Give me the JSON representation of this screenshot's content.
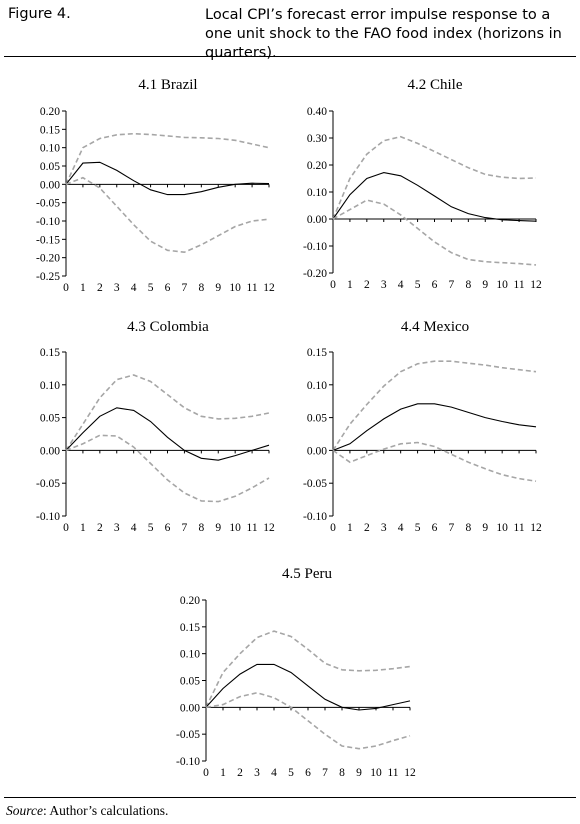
{
  "figure": {
    "number": "Figure 4.",
    "title": "Local CPI’s forecast error impulse response to a one unit shock to the FAO food index (horizons in quarters).",
    "source_label": "Source",
    "source_text": ": Author’s calculations."
  },
  "colors": {
    "median": "#000000",
    "bands": "#a6a6a6",
    "axis": "#000000"
  },
  "chart_data": [
    {
      "type": "line",
      "title": "4.1 Brazil",
      "x": [
        0,
        1,
        2,
        3,
        4,
        5,
        6,
        7,
        8,
        9,
        10,
        11,
        12
      ],
      "ylim": [
        -0.25,
        0.2
      ],
      "yticks": [
        "0.20",
        "0.15",
        "0.10",
        "0.05",
        "0.00",
        "-0.05",
        "-0.10",
        "-0.15",
        "-0.20",
        "-0.25"
      ],
      "series": [
        {
          "role": "upper",
          "style": "dashed",
          "values": [
            0.0,
            0.1,
            0.125,
            0.135,
            0.138,
            0.136,
            0.132,
            0.128,
            0.127,
            0.125,
            0.12,
            0.11,
            0.1
          ]
        },
        {
          "role": "median",
          "style": "solid",
          "values": [
            0.0,
            0.058,
            0.06,
            0.038,
            0.01,
            -0.015,
            -0.028,
            -0.028,
            -0.02,
            -0.008,
            0.0,
            0.003,
            0.002
          ]
        },
        {
          "role": "lower",
          "style": "dashed",
          "values": [
            0.0,
            0.018,
            -0.01,
            -0.06,
            -0.11,
            -0.155,
            -0.18,
            -0.185,
            -0.165,
            -0.14,
            -0.115,
            -0.1,
            -0.095
          ]
        }
      ]
    },
    {
      "type": "line",
      "title": "4.2 Chile",
      "x": [
        0,
        1,
        2,
        3,
        4,
        5,
        6,
        7,
        8,
        9,
        10,
        11,
        12
      ],
      "ylim": [
        -0.2,
        0.4
      ],
      "yticks": [
        "0.40",
        "0.30",
        "0.20",
        "0.10",
        "0.00",
        "-0.10",
        "-0.20"
      ],
      "series": [
        {
          "role": "upper",
          "style": "dashed",
          "values": [
            0.0,
            0.15,
            0.24,
            0.29,
            0.305,
            0.28,
            0.25,
            0.22,
            0.19,
            0.165,
            0.155,
            0.15,
            0.152
          ]
        },
        {
          "role": "median",
          "style": "solid",
          "values": [
            0.0,
            0.09,
            0.15,
            0.172,
            0.16,
            0.125,
            0.085,
            0.045,
            0.02,
            0.005,
            -0.003,
            -0.006,
            -0.008
          ]
        },
        {
          "role": "lower",
          "style": "dashed",
          "values": [
            0.0,
            0.035,
            0.07,
            0.055,
            0.015,
            -0.035,
            -0.085,
            -0.125,
            -0.15,
            -0.158,
            -0.162,
            -0.165,
            -0.17
          ]
        }
      ]
    },
    {
      "type": "line",
      "title": "4.3 Colombia",
      "x": [
        0,
        1,
        2,
        3,
        4,
        5,
        6,
        7,
        8,
        9,
        10,
        11,
        12
      ],
      "ylim": [
        -0.1,
        0.15
      ],
      "yticks": [
        "0.15",
        "0.10",
        "0.05",
        "0.00",
        "-0.05",
        "-0.10"
      ],
      "series": [
        {
          "role": "upper",
          "style": "dashed",
          "values": [
            0.0,
            0.04,
            0.08,
            0.108,
            0.115,
            0.105,
            0.085,
            0.065,
            0.052,
            0.048,
            0.049,
            0.052,
            0.057
          ]
        },
        {
          "role": "median",
          "style": "solid",
          "values": [
            0.0,
            0.027,
            0.052,
            0.065,
            0.061,
            0.044,
            0.02,
            0.0,
            -0.012,
            -0.015,
            -0.008,
            0.0,
            0.008
          ]
        },
        {
          "role": "lower",
          "style": "dashed",
          "values": [
            0.0,
            0.01,
            0.023,
            0.022,
            0.005,
            -0.02,
            -0.045,
            -0.065,
            -0.077,
            -0.078,
            -0.07,
            -0.057,
            -0.042
          ]
        }
      ]
    },
    {
      "type": "line",
      "title": "4.4 Mexico",
      "x": [
        0,
        1,
        2,
        3,
        4,
        5,
        6,
        7,
        8,
        9,
        10,
        11,
        12
      ],
      "ylim": [
        -0.1,
        0.15
      ],
      "yticks": [
        "0.15",
        "0.10",
        "0.05",
        "0.00",
        "-0.05",
        "-0.10"
      ],
      "series": [
        {
          "role": "upper",
          "style": "dashed",
          "values": [
            0.0,
            0.04,
            0.07,
            0.098,
            0.12,
            0.132,
            0.136,
            0.136,
            0.133,
            0.13,
            0.126,
            0.123,
            0.12
          ]
        },
        {
          "role": "median",
          "style": "solid",
          "values": [
            0.0,
            0.01,
            0.03,
            0.048,
            0.063,
            0.071,
            0.071,
            0.066,
            0.058,
            0.05,
            0.044,
            0.039,
            0.036
          ]
        },
        {
          "role": "lower",
          "style": "dashed",
          "values": [
            0.0,
            -0.018,
            -0.008,
            0.002,
            0.01,
            0.012,
            0.006,
            -0.006,
            -0.018,
            -0.028,
            -0.037,
            -0.043,
            -0.047
          ]
        }
      ]
    },
    {
      "type": "line",
      "title": "4.5 Peru",
      "x": [
        0,
        1,
        2,
        3,
        4,
        5,
        6,
        7,
        8,
        9,
        10,
        11,
        12
      ],
      "ylim": [
        -0.1,
        0.2
      ],
      "yticks": [
        "0.20",
        "0.15",
        "0.10",
        "0.05",
        "0.00",
        "-0.05",
        "-0.10"
      ],
      "series": [
        {
          "role": "upper",
          "style": "dashed",
          "values": [
            0.0,
            0.065,
            0.1,
            0.13,
            0.142,
            0.132,
            0.108,
            0.082,
            0.07,
            0.068,
            0.069,
            0.072,
            0.076
          ]
        },
        {
          "role": "median",
          "style": "solid",
          "values": [
            0.0,
            0.035,
            0.062,
            0.08,
            0.08,
            0.065,
            0.04,
            0.015,
            0.0,
            -0.005,
            -0.002,
            0.005,
            0.012
          ]
        },
        {
          "role": "lower",
          "style": "dashed",
          "values": [
            0.0,
            0.005,
            0.02,
            0.027,
            0.018,
            0.0,
            -0.025,
            -0.05,
            -0.072,
            -0.077,
            -0.072,
            -0.062,
            -0.053
          ]
        }
      ]
    }
  ]
}
